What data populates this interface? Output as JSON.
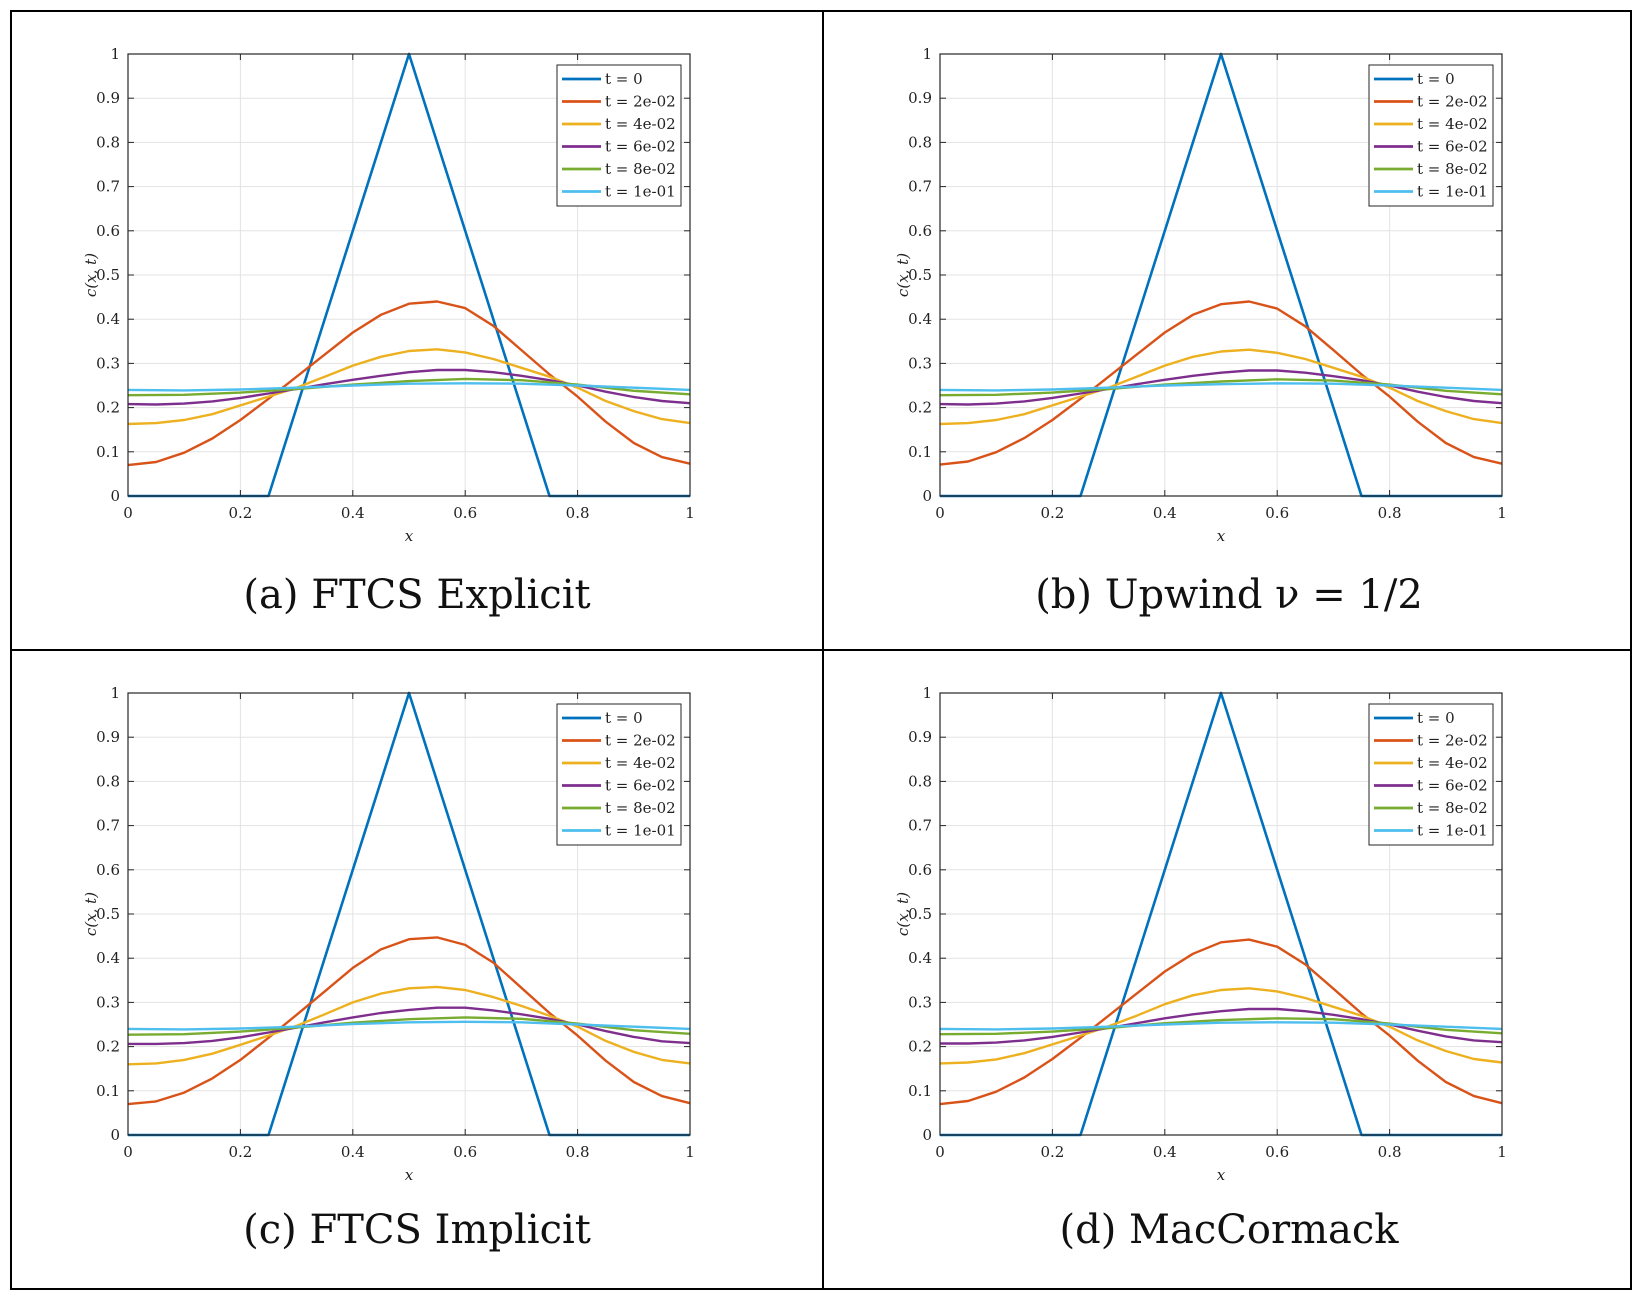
{
  "chart_data": [
    {
      "type": "line",
      "caption_label": "(a)",
      "caption_method": "FTCS Explicit",
      "xlabel": "x",
      "ylabel": "c(x, t)",
      "xlim": [
        0,
        1
      ],
      "ylim": [
        0,
        1
      ],
      "xticks": [
        "0",
        "0.2",
        "0.4",
        "0.6",
        "0.8",
        "1"
      ],
      "yticks": [
        "0",
        "0.1",
        "0.2",
        "0.3",
        "0.4",
        "0.5",
        "0.6",
        "0.7",
        "0.8",
        "0.9",
        "1"
      ],
      "grid": true,
      "legend_position": "top-right",
      "series": [
        {
          "name": "t = 0",
          "color": "#0072BD",
          "x": [
            0,
            0.25,
            0.5,
            0.75,
            1
          ],
          "y": [
            0,
            0,
            1,
            0,
            0
          ]
        },
        {
          "name": "t = 2e-02",
          "color": "#D95319",
          "x": [
            0,
            0.05,
            0.1,
            0.15,
            0.2,
            0.25,
            0.3,
            0.35,
            0.4,
            0.45,
            0.5,
            0.55,
            0.6,
            0.65,
            0.7,
            0.75,
            0.8,
            0.85,
            0.9,
            0.95,
            1
          ],
          "y": [
            0.07,
            0.077,
            0.098,
            0.13,
            0.172,
            0.22,
            0.27,
            0.32,
            0.37,
            0.41,
            0.435,
            0.44,
            0.425,
            0.385,
            0.33,
            0.275,
            0.225,
            0.168,
            0.12,
            0.088,
            0.073
          ]
        },
        {
          "name": "t = 4e-02",
          "color": "#EDB120",
          "x": [
            0,
            0.05,
            0.1,
            0.15,
            0.2,
            0.25,
            0.3,
            0.35,
            0.4,
            0.45,
            0.5,
            0.55,
            0.6,
            0.65,
            0.7,
            0.75,
            0.8,
            0.85,
            0.9,
            0.95,
            1
          ],
          "y": [
            0.163,
            0.165,
            0.172,
            0.185,
            0.205,
            0.225,
            0.245,
            0.27,
            0.295,
            0.315,
            0.328,
            0.332,
            0.325,
            0.31,
            0.29,
            0.27,
            0.245,
            0.215,
            0.192,
            0.174,
            0.165
          ]
        },
        {
          "name": "t = 6e-02",
          "color": "#7E2F8E",
          "x": [
            0,
            0.05,
            0.1,
            0.15,
            0.2,
            0.25,
            0.3,
            0.35,
            0.4,
            0.45,
            0.5,
            0.55,
            0.6,
            0.65,
            0.7,
            0.75,
            0.8,
            0.85,
            0.9,
            0.95,
            1
          ],
          "y": [
            0.208,
            0.207,
            0.209,
            0.214,
            0.222,
            0.232,
            0.242,
            0.253,
            0.263,
            0.272,
            0.28,
            0.285,
            0.285,
            0.28,
            0.272,
            0.262,
            0.25,
            0.236,
            0.224,
            0.215,
            0.21
          ]
        },
        {
          "name": "t = 8e-02",
          "color": "#77AC30",
          "x": [
            0,
            0.1,
            0.2,
            0.3,
            0.4,
            0.5,
            0.6,
            0.7,
            0.8,
            0.9,
            1
          ],
          "y": [
            0.228,
            0.229,
            0.234,
            0.242,
            0.252,
            0.26,
            0.265,
            0.262,
            0.252,
            0.238,
            0.23
          ]
        },
        {
          "name": "t = 1e-01",
          "color": "#4DBEEE",
          "x": [
            0,
            0.1,
            0.2,
            0.3,
            0.4,
            0.5,
            0.6,
            0.7,
            0.8,
            0.9,
            1
          ],
          "y": [
            0.24,
            0.239,
            0.241,
            0.245,
            0.25,
            0.254,
            0.255,
            0.254,
            0.25,
            0.245,
            0.24
          ]
        }
      ]
    },
    {
      "type": "line",
      "caption_label": "(b)",
      "caption_method": "Upwind ν = 1/2",
      "xlabel": "x",
      "ylabel": "c(x, t)",
      "xlim": [
        0,
        1
      ],
      "ylim": [
        0,
        1
      ],
      "xticks": [
        "0",
        "0.2",
        "0.4",
        "0.6",
        "0.8",
        "1"
      ],
      "yticks": [
        "0",
        "0.1",
        "0.2",
        "0.3",
        "0.4",
        "0.5",
        "0.6",
        "0.7",
        "0.8",
        "0.9",
        "1"
      ],
      "grid": true,
      "legend_position": "top-right",
      "series": [
        {
          "name": "t = 0",
          "color": "#0072BD",
          "x": [
            0,
            0.25,
            0.5,
            0.75,
            1
          ],
          "y": [
            0,
            0,
            1,
            0,
            0
          ]
        },
        {
          "name": "t = 2e-02",
          "color": "#D95319",
          "x": [
            0,
            0.05,
            0.1,
            0.15,
            0.2,
            0.25,
            0.3,
            0.35,
            0.4,
            0.45,
            0.5,
            0.55,
            0.6,
            0.65,
            0.7,
            0.75,
            0.8,
            0.85,
            0.9,
            0.95,
            1
          ],
          "y": [
            0.071,
            0.078,
            0.099,
            0.131,
            0.172,
            0.22,
            0.27,
            0.32,
            0.37,
            0.41,
            0.434,
            0.44,
            0.424,
            0.384,
            0.33,
            0.275,
            0.225,
            0.168,
            0.12,
            0.088,
            0.073
          ]
        },
        {
          "name": "t = 4e-02",
          "color": "#EDB120",
          "x": [
            0,
            0.05,
            0.1,
            0.15,
            0.2,
            0.25,
            0.3,
            0.35,
            0.4,
            0.45,
            0.5,
            0.55,
            0.6,
            0.65,
            0.7,
            0.75,
            0.8,
            0.85,
            0.9,
            0.95,
            1
          ],
          "y": [
            0.163,
            0.165,
            0.172,
            0.185,
            0.205,
            0.225,
            0.245,
            0.27,
            0.295,
            0.315,
            0.327,
            0.331,
            0.324,
            0.31,
            0.29,
            0.27,
            0.245,
            0.215,
            0.192,
            0.174,
            0.165
          ]
        },
        {
          "name": "t = 6e-02",
          "color": "#7E2F8E",
          "x": [
            0,
            0.05,
            0.1,
            0.15,
            0.2,
            0.25,
            0.3,
            0.35,
            0.4,
            0.45,
            0.5,
            0.55,
            0.6,
            0.65,
            0.7,
            0.75,
            0.8,
            0.85,
            0.9,
            0.95,
            1
          ],
          "y": [
            0.208,
            0.207,
            0.209,
            0.214,
            0.222,
            0.232,
            0.242,
            0.253,
            0.263,
            0.272,
            0.279,
            0.284,
            0.284,
            0.279,
            0.271,
            0.262,
            0.25,
            0.236,
            0.224,
            0.215,
            0.21
          ]
        },
        {
          "name": "t = 8e-02",
          "color": "#77AC30",
          "x": [
            0,
            0.1,
            0.2,
            0.3,
            0.4,
            0.5,
            0.6,
            0.7,
            0.8,
            0.9,
            1
          ],
          "y": [
            0.228,
            0.229,
            0.234,
            0.242,
            0.252,
            0.259,
            0.264,
            0.261,
            0.252,
            0.238,
            0.23
          ]
        },
        {
          "name": "t = 1e-01",
          "color": "#4DBEEE",
          "x": [
            0,
            0.1,
            0.2,
            0.3,
            0.4,
            0.5,
            0.6,
            0.7,
            0.8,
            0.9,
            1
          ],
          "y": [
            0.24,
            0.239,
            0.241,
            0.245,
            0.25,
            0.253,
            0.255,
            0.254,
            0.25,
            0.245,
            0.24
          ]
        }
      ]
    },
    {
      "type": "line",
      "caption_label": "(c)",
      "caption_method": "FTCS Implicit",
      "xlabel": "x",
      "ylabel": "c(x, t)",
      "xlim": [
        0,
        1
      ],
      "ylim": [
        0,
        1
      ],
      "xticks": [
        "0",
        "0.2",
        "0.4",
        "0.6",
        "0.8",
        "1"
      ],
      "yticks": [
        "0",
        "0.1",
        "0.2",
        "0.3",
        "0.4",
        "0.5",
        "0.6",
        "0.7",
        "0.8",
        "0.9",
        "1"
      ],
      "grid": true,
      "legend_position": "top-right",
      "series": [
        {
          "name": "t = 0",
          "color": "#0072BD",
          "x": [
            0,
            0.25,
            0.5,
            0.75,
            1
          ],
          "y": [
            0,
            0,
            1,
            0,
            0
          ]
        },
        {
          "name": "t = 2e-02",
          "color": "#D95319",
          "x": [
            0,
            0.05,
            0.1,
            0.15,
            0.2,
            0.25,
            0.3,
            0.35,
            0.4,
            0.45,
            0.5,
            0.55,
            0.6,
            0.65,
            0.7,
            0.75,
            0.8,
            0.85,
            0.9,
            0.95,
            1
          ],
          "y": [
            0.07,
            0.076,
            0.096,
            0.128,
            0.17,
            0.22,
            0.272,
            0.325,
            0.378,
            0.42,
            0.443,
            0.447,
            0.43,
            0.39,
            0.333,
            0.276,
            0.225,
            0.168,
            0.12,
            0.088,
            0.072
          ]
        },
        {
          "name": "t = 4e-02",
          "color": "#EDB120",
          "x": [
            0,
            0.05,
            0.1,
            0.15,
            0.2,
            0.25,
            0.3,
            0.35,
            0.4,
            0.45,
            0.5,
            0.55,
            0.6,
            0.65,
            0.7,
            0.75,
            0.8,
            0.85,
            0.9,
            0.95,
            1
          ],
          "y": [
            0.16,
            0.162,
            0.17,
            0.184,
            0.204,
            0.225,
            0.247,
            0.273,
            0.3,
            0.32,
            0.332,
            0.335,
            0.328,
            0.312,
            0.292,
            0.27,
            0.245,
            0.213,
            0.188,
            0.17,
            0.162
          ]
        },
        {
          "name": "t = 6e-02",
          "color": "#7E2F8E",
          "x": [
            0,
            0.05,
            0.1,
            0.15,
            0.2,
            0.25,
            0.3,
            0.35,
            0.4,
            0.45,
            0.5,
            0.55,
            0.6,
            0.65,
            0.7,
            0.75,
            0.8,
            0.85,
            0.9,
            0.95,
            1
          ],
          "y": [
            0.206,
            0.206,
            0.208,
            0.213,
            0.221,
            0.232,
            0.243,
            0.255,
            0.266,
            0.276,
            0.283,
            0.288,
            0.288,
            0.282,
            0.273,
            0.263,
            0.25,
            0.235,
            0.222,
            0.212,
            0.208
          ]
        },
        {
          "name": "t = 8e-02",
          "color": "#77AC30",
          "x": [
            0,
            0.1,
            0.2,
            0.3,
            0.4,
            0.5,
            0.6,
            0.7,
            0.8,
            0.9,
            1
          ],
          "y": [
            0.227,
            0.228,
            0.234,
            0.243,
            0.254,
            0.262,
            0.266,
            0.263,
            0.252,
            0.237,
            0.229
          ]
        },
        {
          "name": "t = 1e-01",
          "color": "#4DBEEE",
          "x": [
            0,
            0.1,
            0.2,
            0.3,
            0.4,
            0.5,
            0.6,
            0.7,
            0.8,
            0.9,
            1
          ],
          "y": [
            0.24,
            0.239,
            0.241,
            0.245,
            0.251,
            0.255,
            0.256,
            0.255,
            0.25,
            0.245,
            0.24
          ]
        }
      ]
    },
    {
      "type": "line",
      "caption_label": "(d)",
      "caption_method": "MacCormack",
      "xlabel": "x",
      "ylabel": "c(x, t)",
      "xlim": [
        0,
        1
      ],
      "ylim": [
        0,
        1
      ],
      "xticks": [
        "0",
        "0.2",
        "0.4",
        "0.6",
        "0.8",
        "1"
      ],
      "yticks": [
        "0",
        "0.1",
        "0.2",
        "0.3",
        "0.4",
        "0.5",
        "0.6",
        "0.7",
        "0.8",
        "0.9",
        "1"
      ],
      "grid": true,
      "legend_position": "top-right",
      "series": [
        {
          "name": "t = 0",
          "color": "#0072BD",
          "x": [
            0,
            0.25,
            0.5,
            0.75,
            1
          ],
          "y": [
            0,
            0,
            1,
            0,
            0
          ]
        },
        {
          "name": "t = 2e-02",
          "color": "#D95319",
          "x": [
            0,
            0.05,
            0.1,
            0.15,
            0.2,
            0.25,
            0.3,
            0.35,
            0.4,
            0.45,
            0.5,
            0.55,
            0.6,
            0.65,
            0.7,
            0.75,
            0.8,
            0.85,
            0.9,
            0.95,
            1
          ],
          "y": [
            0.07,
            0.077,
            0.098,
            0.13,
            0.172,
            0.22,
            0.27,
            0.32,
            0.37,
            0.41,
            0.436,
            0.442,
            0.426,
            0.386,
            0.331,
            0.275,
            0.225,
            0.168,
            0.12,
            0.088,
            0.072
          ]
        },
        {
          "name": "t = 4e-02",
          "color": "#EDB120",
          "x": [
            0,
            0.05,
            0.1,
            0.15,
            0.2,
            0.25,
            0.3,
            0.35,
            0.4,
            0.45,
            0.5,
            0.55,
            0.6,
            0.65,
            0.7,
            0.75,
            0.8,
            0.85,
            0.9,
            0.95,
            1
          ],
          "y": [
            0.162,
            0.164,
            0.171,
            0.185,
            0.205,
            0.225,
            0.246,
            0.27,
            0.296,
            0.316,
            0.328,
            0.332,
            0.325,
            0.31,
            0.29,
            0.27,
            0.245,
            0.214,
            0.19,
            0.172,
            0.164
          ]
        },
        {
          "name": "t = 6e-02",
          "color": "#7E2F8E",
          "x": [
            0,
            0.05,
            0.1,
            0.15,
            0.2,
            0.25,
            0.3,
            0.35,
            0.4,
            0.45,
            0.5,
            0.55,
            0.6,
            0.65,
            0.7,
            0.75,
            0.8,
            0.85,
            0.9,
            0.95,
            1
          ],
          "y": [
            0.207,
            0.207,
            0.209,
            0.214,
            0.222,
            0.232,
            0.242,
            0.253,
            0.264,
            0.273,
            0.28,
            0.285,
            0.285,
            0.28,
            0.272,
            0.262,
            0.25,
            0.236,
            0.223,
            0.214,
            0.21
          ]
        },
        {
          "name": "t = 8e-02",
          "color": "#77AC30",
          "x": [
            0,
            0.1,
            0.2,
            0.3,
            0.4,
            0.5,
            0.6,
            0.7,
            0.8,
            0.9,
            1
          ],
          "y": [
            0.228,
            0.229,
            0.234,
            0.242,
            0.253,
            0.26,
            0.264,
            0.262,
            0.252,
            0.238,
            0.23
          ]
        },
        {
          "name": "t = 1e-01",
          "color": "#4DBEEE",
          "x": [
            0,
            0.1,
            0.2,
            0.3,
            0.4,
            0.5,
            0.6,
            0.7,
            0.8,
            0.9,
            1
          ],
          "y": [
            0.24,
            0.239,
            0.241,
            0.245,
            0.25,
            0.254,
            0.255,
            0.254,
            0.25,
            0.245,
            0.24
          ]
        }
      ]
    }
  ]
}
